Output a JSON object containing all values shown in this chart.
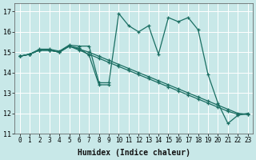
{
  "xlabel": "Humidex (Indice chaleur)",
  "xlim": [
    -0.5,
    23.5
  ],
  "ylim": [
    11,
    17.4
  ],
  "yticks": [
    11,
    12,
    13,
    14,
    15,
    16,
    17
  ],
  "xticks": [
    0,
    1,
    2,
    3,
    4,
    5,
    6,
    7,
    8,
    9,
    10,
    11,
    12,
    13,
    14,
    15,
    16,
    17,
    18,
    19,
    20,
    21,
    22,
    23
  ],
  "background_color": "#c8e8e8",
  "grid_color": "#ffffff",
  "line_color": "#1a6e62",
  "lines": [
    {
      "x": [
        0,
        1,
        2,
        3,
        4,
        5,
        6,
        7,
        8,
        9,
        10,
        11,
        12,
        13,
        14,
        15,
        16,
        17,
        18,
        19,
        20,
        21,
        22,
        23
      ],
      "y": [
        14.8,
        14.9,
        15.15,
        15.15,
        15.05,
        15.35,
        15.3,
        15.3,
        13.5,
        13.5,
        16.9,
        16.3,
        16.0,
        16.3,
        14.9,
        16.7,
        16.5,
        16.7,
        16.1,
        13.9,
        12.5,
        11.5,
        11.9,
        12.0
      ]
    },
    {
      "x": [
        0,
        1,
        2,
        3,
        4,
        5,
        6,
        7,
        8,
        9,
        10,
        11,
        12,
        13,
        14,
        15,
        16,
        17,
        18,
        19,
        20,
        21,
        22,
        23
      ],
      "y": [
        14.8,
        14.9,
        15.1,
        15.1,
        15.0,
        15.3,
        15.1,
        14.9,
        14.7,
        14.5,
        14.3,
        14.1,
        13.9,
        13.7,
        13.5,
        13.3,
        13.1,
        12.9,
        12.7,
        12.5,
        12.3,
        12.1,
        11.95,
        11.95
      ]
    },
    {
      "x": [
        0,
        1,
        2,
        3,
        4,
        5,
        6,
        7,
        8,
        9,
        10,
        11,
        12,
        13,
        14,
        15,
        16,
        17,
        18,
        19,
        20,
        21,
        22,
        23
      ],
      "y": [
        14.8,
        14.9,
        15.1,
        15.1,
        15.0,
        15.3,
        15.15,
        15.0,
        14.8,
        14.6,
        14.4,
        14.2,
        14.0,
        13.8,
        13.6,
        13.4,
        13.2,
        13.0,
        12.8,
        12.6,
        12.4,
        12.2,
        12.0,
        11.95
      ]
    },
    {
      "x": [
        0,
        1,
        2,
        3,
        4,
        5,
        6,
        7,
        8,
        9
      ],
      "y": [
        14.8,
        14.9,
        15.1,
        15.1,
        15.0,
        15.3,
        15.2,
        14.85,
        13.4,
        13.4
      ]
    }
  ]
}
